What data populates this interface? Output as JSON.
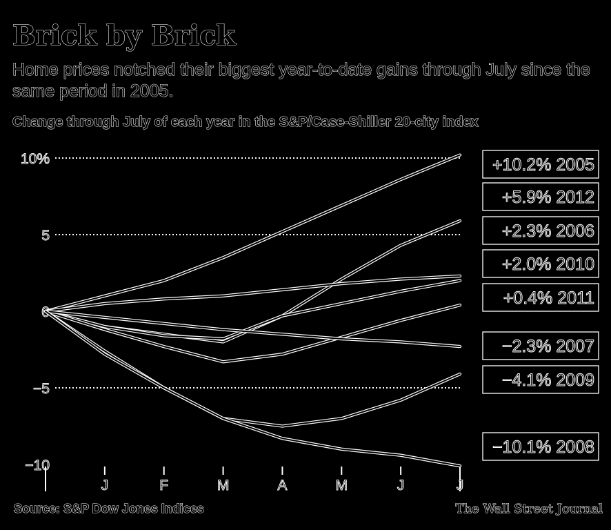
{
  "header": {
    "title": "Brick by Brick",
    "subtitle": "Home prices notched their biggest year-to-date gains through July since the same period in 2005.",
    "chart_note": "Change through July of each year in the S&P/Case-Shiller 20-city index"
  },
  "footer": {
    "source": "Source: S&P Dow Jones Indices",
    "credit": "The Wall Street Journal"
  },
  "colors": {
    "background": "#000000",
    "line": "#ffffff",
    "grid": "#ffffff"
  },
  "chart_data": {
    "type": "line",
    "title": "",
    "xlabel": "",
    "ylabel": "",
    "x": [
      "",
      "J",
      "F",
      "M",
      "A",
      "M",
      "J",
      "J"
    ],
    "ylim": [
      -10,
      10
    ],
    "y_ticks": [
      10,
      5,
      0,
      -5,
      -10
    ],
    "y_tick_labels": [
      "10%",
      "5",
      "0",
      "−5",
      "−10"
    ],
    "grid": "dotted horizontal",
    "series": [
      {
        "name": "2005",
        "label": "+10.2%",
        "values": [
          0,
          1.0,
          2.0,
          3.5,
          5.2,
          6.9,
          8.6,
          10.2
        ]
      },
      {
        "name": "2012",
        "label": "+5.9%",
        "values": [
          0,
          -1.0,
          -1.5,
          -2.0,
          -0.3,
          2.1,
          4.3,
          5.9
        ]
      },
      {
        "name": "2006",
        "label": "+2.3%",
        "values": [
          0,
          0.5,
          0.8,
          1.0,
          1.4,
          1.8,
          2.1,
          2.3
        ]
      },
      {
        "name": "2010",
        "label": "+2.0%",
        "values": [
          0,
          -1.0,
          -1.6,
          -1.8,
          -0.3,
          0.5,
          1.3,
          2.0
        ]
      },
      {
        "name": "2011",
        "label": "+0.4%",
        "values": [
          0,
          -1.2,
          -2.3,
          -3.3,
          -2.8,
          -1.7,
          -0.6,
          0.4
        ]
      },
      {
        "name": "2007",
        "label": "−2.3%",
        "values": [
          0,
          -0.4,
          -0.8,
          -1.2,
          -1.5,
          -1.8,
          -2.0,
          -2.3
        ]
      },
      {
        "name": "2009",
        "label": "−4.1%",
        "values": [
          0,
          -2.6,
          -5.0,
          -7.0,
          -7.5,
          -7.0,
          -5.8,
          -4.1
        ]
      },
      {
        "name": "2008",
        "label": "−10.1%",
        "values": [
          0,
          -2.8,
          -5.0,
          -7.0,
          -8.3,
          -9.0,
          -9.4,
          -10.1
        ]
      }
    ],
    "legend": "right"
  }
}
